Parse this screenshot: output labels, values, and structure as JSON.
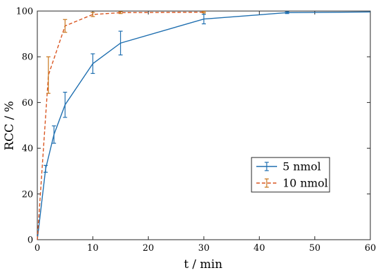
{
  "chart_data": {
    "type": "line",
    "xlabel": "t / min",
    "ylabel": "RCC / %",
    "xlim": [
      0,
      60
    ],
    "ylim": [
      0,
      100
    ],
    "xticks": [
      0,
      10,
      20,
      30,
      40,
      50,
      60
    ],
    "yticks": [
      0,
      20,
      40,
      60,
      80,
      100
    ],
    "grid": false,
    "legend_position": "lower-right",
    "series": [
      {
        "name": "5 nmol",
        "color": "#1f6fb0",
        "line_style": "solid",
        "x": [
          0,
          1.5,
          3,
          5,
          10,
          15,
          30,
          45,
          60
        ],
        "y": [
          0,
          31,
          46,
          59,
          77,
          86,
          96.5,
          99.3,
          99.6
        ],
        "err": [
          0,
          1.5,
          3.8,
          5.5,
          4.3,
          5.2,
          2.1,
          0.4,
          0
        ],
        "show_err": [
          false,
          true,
          true,
          true,
          true,
          true,
          true,
          true,
          false
        ]
      },
      {
        "name": "10 nmol",
        "color": "#d9541f",
        "err_color": "#c8751a",
        "line_style": "dashed",
        "x": [
          0,
          2,
          5,
          10,
          15,
          30
        ],
        "y": [
          0,
          72,
          93.5,
          98.5,
          99.3,
          99.5
        ],
        "err": [
          0,
          8,
          2.8,
          0.9,
          0.4,
          0.3
        ],
        "show_err": [
          false,
          true,
          true,
          true,
          true,
          true
        ]
      }
    ]
  }
}
